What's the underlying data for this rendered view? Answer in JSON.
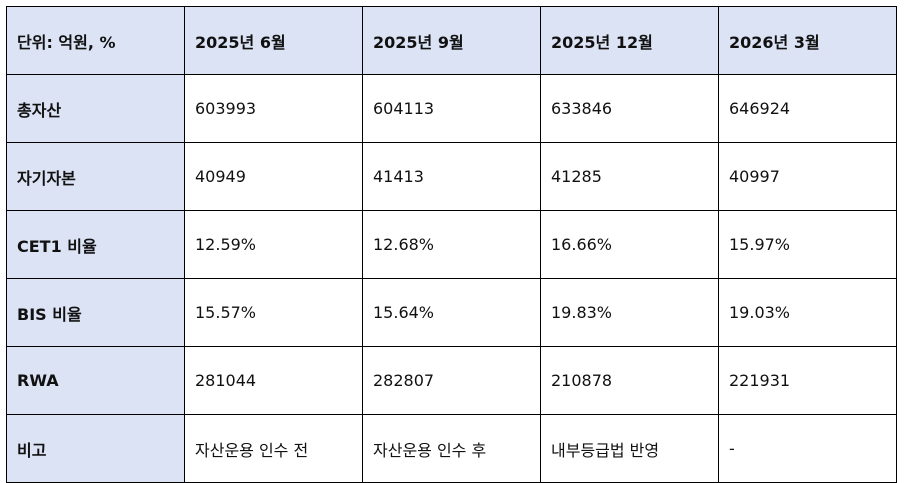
{
  "table": {
    "header": [
      "단위: 억원, %",
      "2025년 6월",
      "2025년 9월",
      "2025년 12월",
      "2026년 3월"
    ],
    "rows": [
      {
        "label": "총자산",
        "values": [
          "603993",
          "604113",
          "633846",
          "646924"
        ]
      },
      {
        "label": "자기자본",
        "values": [
          "40949",
          "41413",
          "41285",
          "40997"
        ]
      },
      {
        "label": "CET1 비율",
        "values": [
          "12.59%",
          "12.68%",
          "16.66%",
          "15.97%"
        ]
      },
      {
        "label": "BIS 비율",
        "values": [
          "15.57%",
          "15.64%",
          "19.83%",
          "19.03%"
        ]
      },
      {
        "label": "RWA",
        "values": [
          "281044",
          "282807",
          "210878",
          "221931"
        ]
      },
      {
        "label": "비고",
        "values": [
          "자산운용 인수 전",
          "자산운용 인수 후",
          "내부등급법 반영",
          "-"
        ]
      }
    ]
  },
  "colors": {
    "header_bg": "#dce3f5",
    "border": "#000000"
  }
}
